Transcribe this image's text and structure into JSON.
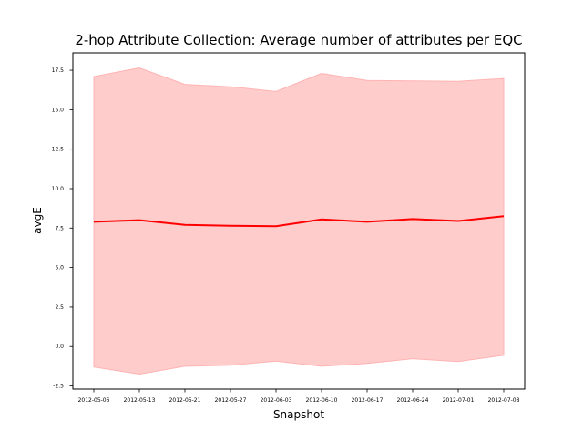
{
  "chart_data": {
    "type": "line",
    "title": "2-hop Attribute Collection:  Average number of attributes per EQC",
    "xlabel": "Snapshot",
    "ylabel": "avgE",
    "categories": [
      "2012-05-06",
      "2012-05-13",
      "2012-05-21",
      "2012-05-27",
      "2012-06-03",
      "2012-06-10",
      "2012-06-17",
      "2012-06-24",
      "2012-07-01",
      "2012-07-08"
    ],
    "series": [
      {
        "values": [
          7.9,
          8.0,
          7.7,
          7.65,
          7.62,
          8.05,
          7.9,
          8.07,
          7.95,
          8.25
        ],
        "upper": [
          17.1,
          17.65,
          16.6,
          16.45,
          16.15,
          17.3,
          16.85,
          16.83,
          16.8,
          16.98
        ],
        "lower": [
          -1.3,
          -1.75,
          -1.25,
          -1.18,
          -0.92,
          -1.25,
          -1.07,
          -0.77,
          -0.95,
          -0.55
        ]
      }
    ],
    "yticks": [
      "-2.5",
      "0.0",
      "2.5",
      "5.0",
      "7.5",
      "10.0",
      "12.5",
      "15.0",
      "17.5"
    ],
    "ylim": [
      -2.7,
      18.6
    ],
    "grid": false,
    "colors": {
      "line": "#ff0000",
      "band": "#ffcccc",
      "band_edge": "#ffb3b3"
    }
  }
}
